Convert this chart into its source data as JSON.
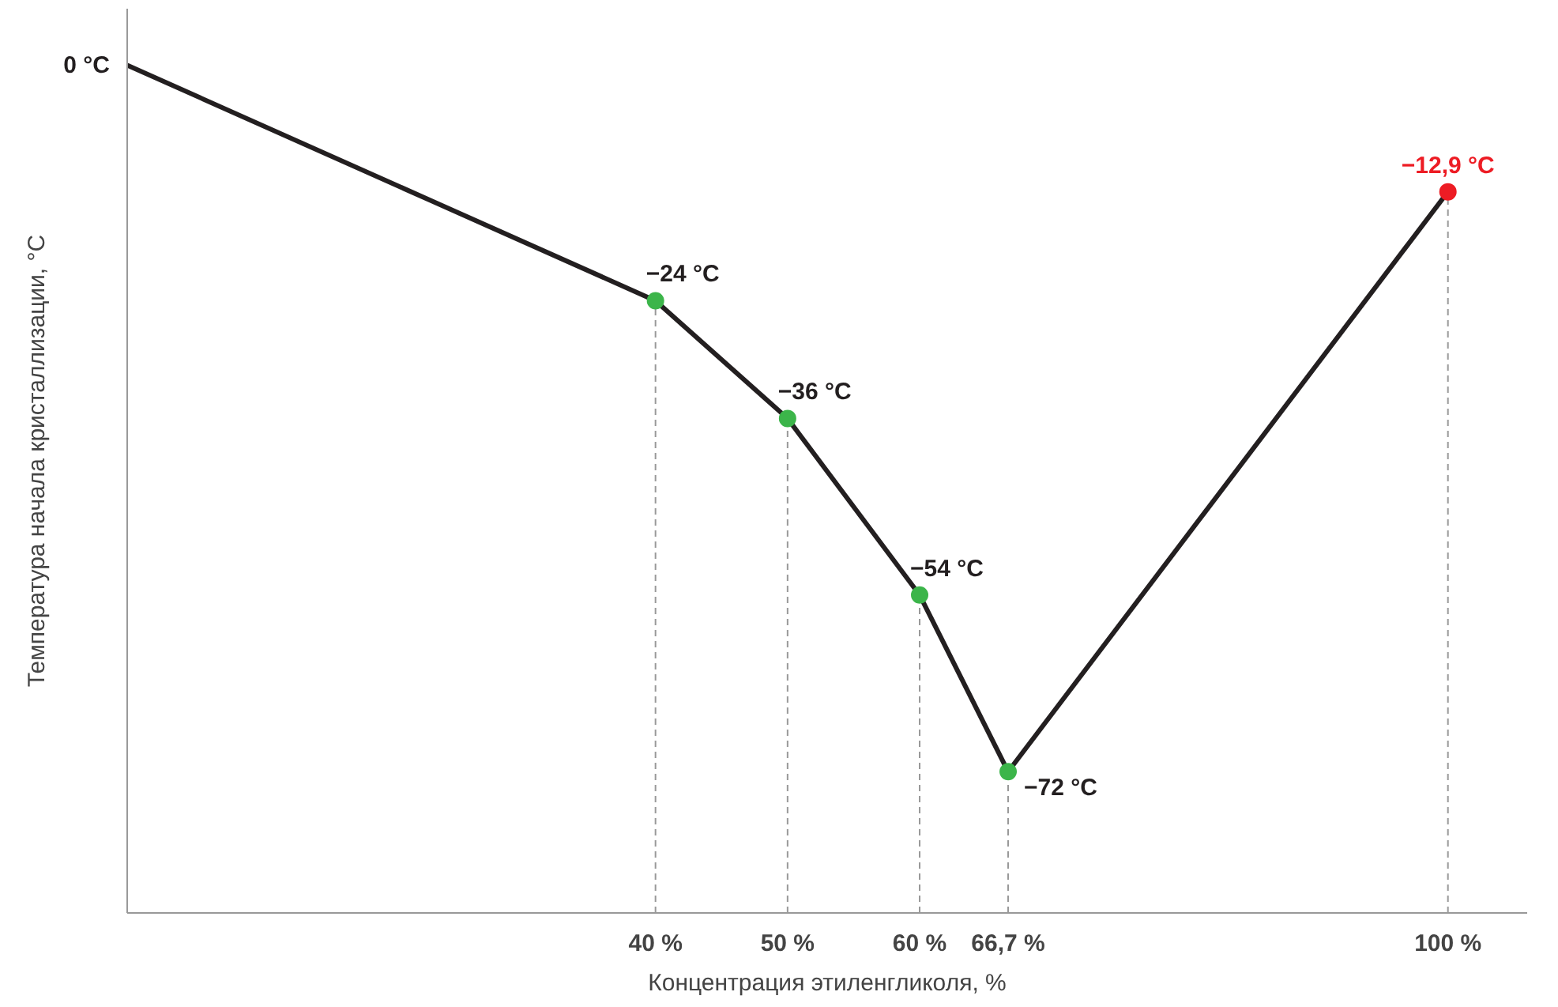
{
  "chart_data": {
    "type": "line",
    "xlabel": "Концентрация этиленгликоля, %",
    "ylabel": "Температура начала кристаллизации, °С",
    "xlim": [
      0,
      106
    ],
    "xticks": [
      {
        "value": 40,
        "label": "40 %"
      },
      {
        "value": 50,
        "label": "50 %"
      },
      {
        "value": 60,
        "label": "60 %"
      },
      {
        "value": 66.7,
        "label": "66,7 %"
      },
      {
        "value": 100,
        "label": "100 %"
      }
    ],
    "grid": "x",
    "marker": "circle",
    "series": [
      {
        "color": "#231f20",
        "x": [
          0,
          40,
          50,
          60,
          66.7,
          100
        ],
        "values": [
          0,
          -24,
          -36,
          -54,
          -72,
          -12.9
        ],
        "colors": [
          null,
          "#3cb54a",
          "#3cb54a",
          "#3cb54a",
          "#3cb54a",
          "#ed1c24"
        ],
        "value_labels": [
          "0 °C",
          "−24 °C",
          "−36 °C",
          "−54 °C",
          "−72 °C",
          "−12,9 °C"
        ]
      }
    ]
  }
}
